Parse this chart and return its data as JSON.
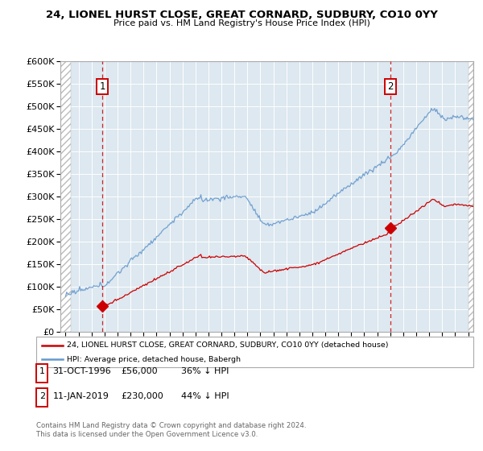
{
  "title": "24, LIONEL HURST CLOSE, GREAT CORNARD, SUDBURY, CO10 0YY",
  "subtitle": "Price paid vs. HM Land Registry's House Price Index (HPI)",
  "legend_line1": "24, LIONEL HURST CLOSE, GREAT CORNARD, SUDBURY, CO10 0YY (detached house)",
  "legend_line2": "HPI: Average price, detached house, Babergh",
  "footer1": "Contains HM Land Registry data © Crown copyright and database right 2024.",
  "footer2": "This data is licensed under the Open Government Licence v3.0.",
  "annotation1": {
    "label": "1",
    "date_label": "31-OCT-1996",
    "price_label": "£56,000",
    "pct_label": "36% ↓ HPI"
  },
  "annotation2": {
    "label": "2",
    "date_label": "11-JAN-2019",
    "price_label": "£230,000",
    "pct_label": "44% ↓ HPI"
  },
  "red_color": "#cc0000",
  "blue_color": "#6699cc",
  "background_plot": "#dde8f0",
  "ylim": [
    0,
    600000
  ],
  "xlim_left": 1993.6,
  "xlim_right": 2025.4,
  "hatch_left_end": 1994.42,
  "hatch_right_start": 2025.0,
  "sale1_year": 1996.83,
  "sale1_price": 56000,
  "sale2_year": 2019.03,
  "sale2_price": 230000
}
